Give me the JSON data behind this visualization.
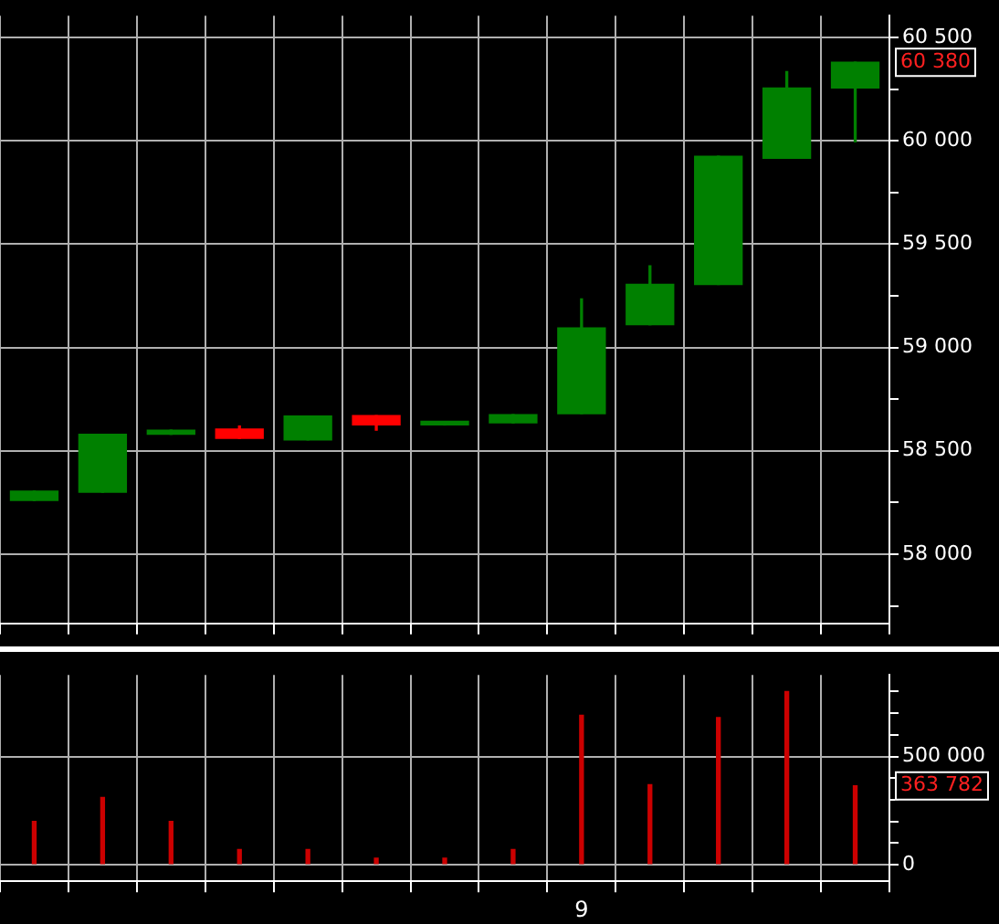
{
  "chart_data": [
    {
      "type": "candlestick",
      "categories": [
        null,
        null,
        null,
        null,
        null,
        null,
        null,
        null,
        null,
        null,
        null,
        null,
        null
      ],
      "ohlc": [
        [
          58260,
          58305,
          58260,
          58305
        ],
        [
          58300,
          58580,
          58300,
          58580
        ],
        [
          58580,
          58600,
          58580,
          58600
        ],
        [
          58605,
          58620,
          58560,
          58560
        ],
        [
          58553,
          58668,
          58553,
          58668
        ],
        [
          58670,
          58670,
          58600,
          58625
        ],
        [
          58625,
          58640,
          58625,
          58640
        ],
        [
          58635,
          58675,
          58635,
          58675
        ],
        [
          58680,
          59235,
          58680,
          59095
        ],
        [
          59110,
          59395,
          59110,
          59305
        ],
        [
          59305,
          59925,
          59305,
          59925
        ],
        [
          59915,
          60335,
          59915,
          60255
        ],
        [
          60255,
          60380,
          59995,
          60380
        ]
      ],
      "colors": [
        "#008000",
        "#008000",
        "#008000",
        "#ff0000",
        "#008000",
        "#ff0000",
        "#008000",
        "#008000",
        "#008000",
        "#008000",
        "#008000",
        "#008000",
        "#008000"
      ],
      "ylim": [
        57665,
        60605
      ],
      "yticks": [
        {
          "value": 57750,
          "label": null
        },
        {
          "value": 58000,
          "label": "58 000"
        },
        {
          "value": 58250,
          "label": null
        },
        {
          "value": 58500,
          "label": "58 500"
        },
        {
          "value": 58750,
          "label": null
        },
        {
          "value": 59000,
          "label": "59 000"
        },
        {
          "value": 59250,
          "label": null
        },
        {
          "value": 59500,
          "label": "59 500"
        },
        {
          "value": 59750,
          "label": null
        },
        {
          "value": 60000,
          "label": "60 000"
        },
        {
          "value": 60250,
          "label": null
        },
        {
          "value": 60500,
          "label": "60 500"
        }
      ],
      "grid": true,
      "tick_labels": "y",
      "annotations": [
        "60 380"
      ]
    },
    {
      "type": "bar",
      "categories": [
        null,
        null,
        null,
        null,
        null,
        null,
        null,
        null,
        "9",
        null,
        null,
        null,
        null
      ],
      "values": [
        200000,
        310000,
        200000,
        70000,
        70000,
        30000,
        30000,
        70000,
        690000,
        370000,
        680000,
        800000,
        363782
      ],
      "color": "#cc0000",
      "ylim": [
        -77000,
        877000
      ],
      "yticks": [
        {
          "value": 0,
          "label": "0"
        },
        {
          "value": 100000,
          "label": null
        },
        {
          "value": 200000,
          "label": null
        },
        {
          "value": 300000,
          "label": null
        },
        {
          "value": 400000,
          "label": null
        },
        {
          "value": 500000,
          "label": "500 000"
        },
        {
          "value": 600000,
          "label": null
        },
        {
          "value": 700000,
          "label": null
        },
        {
          "value": 800000,
          "label": null
        }
      ],
      "grid": true,
      "annotations": [
        "363 782"
      ]
    }
  ]
}
